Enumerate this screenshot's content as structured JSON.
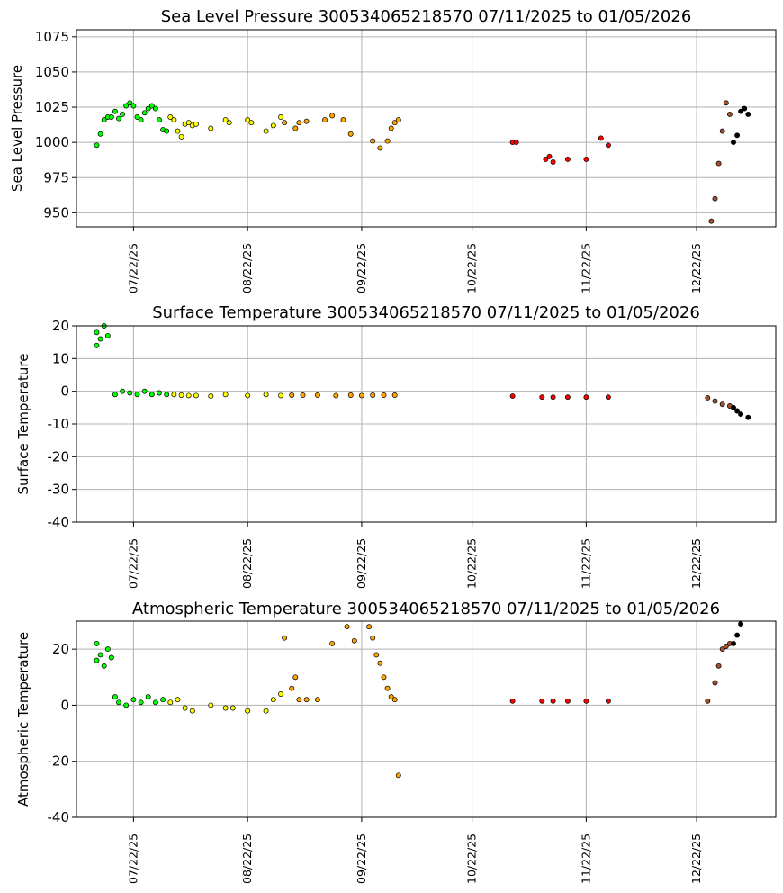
{
  "chart_data": [
    {
      "type": "scatter",
      "title": "Sea Level Pressure 300534065218570  07/11/2025 to 01/05/2026",
      "xlabel": "",
      "ylabel": "Sea Level Pressure",
      "xlim": [
        "2025-07-11",
        "2026-01-05"
      ],
      "ylim": [
        940,
        1080
      ],
      "yticks": [
        950,
        975,
        1000,
        1025,
        1050,
        1075
      ],
      "xticks": [
        "07/22/25",
        "08/22/25",
        "09/22/25",
        "10/22/25",
        "11/22/25",
        "12/22/25"
      ],
      "grid": true,
      "segments": [
        {
          "color": "#00ff00",
          "points": [
            [
              "2025-07-12",
              998
            ],
            [
              "2025-07-13",
              1006
            ],
            [
              "2025-07-14",
              1016
            ],
            [
              "2025-07-15",
              1018
            ],
            [
              "2025-07-16",
              1018
            ],
            [
              "2025-07-17",
              1022
            ],
            [
              "2025-07-18",
              1017
            ],
            [
              "2025-07-19",
              1020
            ],
            [
              "2025-07-20",
              1026
            ],
            [
              "2025-07-21",
              1028
            ],
            [
              "2025-07-22",
              1026
            ],
            [
              "2025-07-23",
              1018
            ],
            [
              "2025-07-24",
              1016
            ],
            [
              "2025-07-25",
              1021
            ],
            [
              "2025-07-26",
              1024
            ],
            [
              "2025-07-27",
              1026
            ],
            [
              "2025-07-28",
              1024
            ],
            [
              "2025-07-29",
              1016
            ],
            [
              "2025-07-30",
              1009
            ],
            [
              "2025-07-31",
              1008
            ]
          ]
        },
        {
          "color": "#ffff00",
          "points": [
            [
              "2025-08-01",
              1018
            ],
            [
              "2025-08-02",
              1016
            ],
            [
              "2025-08-03",
              1008
            ],
            [
              "2025-08-04",
              1004
            ],
            [
              "2025-08-05",
              1013
            ],
            [
              "2025-08-06",
              1014
            ],
            [
              "2025-08-07",
              1012
            ],
            [
              "2025-08-08",
              1013
            ],
            [
              "2025-08-12",
              1010
            ],
            [
              "2025-08-16",
              1016
            ],
            [
              "2025-08-17",
              1014
            ],
            [
              "2025-08-22",
              1016
            ],
            [
              "2025-08-23",
              1014
            ],
            [
              "2025-08-27",
              1008
            ],
            [
              "2025-08-29",
              1012
            ],
            [
              "2025-08-31",
              1018
            ]
          ]
        },
        {
          "color": "#ffa500",
          "points": [
            [
              "2025-09-01",
              1014
            ],
            [
              "2025-09-04",
              1010
            ],
            [
              "2025-09-05",
              1014
            ],
            [
              "2025-09-07",
              1015
            ],
            [
              "2025-09-12",
              1016
            ],
            [
              "2025-09-14",
              1019
            ],
            [
              "2025-09-17",
              1016
            ],
            [
              "2025-09-19",
              1006
            ],
            [
              "2025-09-25",
              1001
            ],
            [
              "2025-09-27",
              996
            ],
            [
              "2025-09-29",
              1001
            ],
            [
              "2025-09-30",
              1010
            ],
            [
              "2025-10-01",
              1014
            ],
            [
              "2025-10-02",
              1016
            ]
          ]
        },
        {
          "color": "#ff0000",
          "points": [
            [
              "2025-11-02",
              1000
            ],
            [
              "2025-11-03",
              1000
            ],
            [
              "2025-11-11",
              988
            ],
            [
              "2025-11-12",
              990
            ],
            [
              "2025-11-13",
              986
            ],
            [
              "2025-11-17",
              988
            ],
            [
              "2025-11-22",
              988
            ],
            [
              "2025-11-26",
              1003
            ],
            [
              "2025-11-28",
              998
            ]
          ]
        },
        {
          "color": "#a0522d",
          "points": [
            [
              "2025-12-26",
              944
            ],
            [
              "2025-12-27",
              960
            ],
            [
              "2025-12-28",
              985
            ],
            [
              "2025-12-29",
              1008
            ],
            [
              "2025-12-30",
              1028
            ],
            [
              "2025-12-31",
              1020
            ]
          ]
        },
        {
          "color": "#000000",
          "points": [
            [
              "2026-01-01",
              1000
            ],
            [
              "2026-01-02",
              1005
            ],
            [
              "2026-01-03",
              1022
            ],
            [
              "2026-01-04",
              1024
            ],
            [
              "2026-01-05",
              1020
            ]
          ]
        }
      ]
    },
    {
      "type": "scatter",
      "title": "Surface Temperature 300534065218570  07/11/2025 to 01/05/2026",
      "xlabel": "",
      "ylabel": "Surface Temperature",
      "xlim": [
        "2025-07-11",
        "2026-01-05"
      ],
      "ylim": [
        -40,
        20
      ],
      "yticks": [
        -40,
        -30,
        -20,
        -10,
        0,
        10,
        20
      ],
      "xticks": [
        "07/22/25",
        "08/22/25",
        "09/22/25",
        "10/22/25",
        "11/22/25",
        "12/22/25"
      ],
      "grid": true,
      "segments": [
        {
          "color": "#00ff00",
          "points": [
            [
              "2025-07-12",
              14
            ],
            [
              "2025-07-12",
              18
            ],
            [
              "2025-07-13",
              16
            ],
            [
              "2025-07-14",
              20
            ],
            [
              "2025-07-15",
              17
            ],
            [
              "2025-07-17",
              -1
            ],
            [
              "2025-07-19",
              0
            ],
            [
              "2025-07-21",
              -0.5
            ],
            [
              "2025-07-23",
              -1
            ],
            [
              "2025-07-25",
              0
            ],
            [
              "2025-07-27",
              -1
            ],
            [
              "2025-07-29",
              -0.5
            ],
            [
              "2025-07-31",
              -1
            ]
          ]
        },
        {
          "color": "#ffff00",
          "points": [
            [
              "2025-08-02",
              -1
            ],
            [
              "2025-08-04",
              -1.2
            ],
            [
              "2025-08-06",
              -1.3
            ],
            [
              "2025-08-08",
              -1.3
            ],
            [
              "2025-08-12",
              -1.5
            ],
            [
              "2025-08-16",
              -1
            ],
            [
              "2025-08-22",
              -1.3
            ],
            [
              "2025-08-27",
              -1
            ],
            [
              "2025-08-31",
              -1.3
            ]
          ]
        },
        {
          "color": "#ffa500",
          "points": [
            [
              "2025-09-03",
              -1.2
            ],
            [
              "2025-09-06",
              -1.2
            ],
            [
              "2025-09-10",
              -1.2
            ],
            [
              "2025-09-15",
              -1.3
            ],
            [
              "2025-09-19",
              -1.2
            ],
            [
              "2025-09-22",
              -1.3
            ],
            [
              "2025-09-25",
              -1.2
            ],
            [
              "2025-09-28",
              -1.2
            ],
            [
              "2025-10-01",
              -1.2
            ]
          ]
        },
        {
          "color": "#ff0000",
          "points": [
            [
              "2025-11-02",
              -1.5
            ],
            [
              "2025-11-10",
              -1.8
            ],
            [
              "2025-11-13",
              -1.8
            ],
            [
              "2025-11-17",
              -1.8
            ],
            [
              "2025-11-22",
              -1.8
            ],
            [
              "2025-11-28",
              -1.8
            ]
          ]
        },
        {
          "color": "#a0522d",
          "points": [
            [
              "2025-12-25",
              -2
            ],
            [
              "2025-12-27",
              -3
            ],
            [
              "2025-12-29",
              -4
            ],
            [
              "2025-12-31",
              -4.5
            ]
          ]
        },
        {
          "color": "#000000",
          "points": [
            [
              "2026-01-01",
              -5
            ],
            [
              "2026-01-02",
              -6
            ],
            [
              "2026-01-03",
              -7
            ],
            [
              "2026-01-05",
              -8
            ]
          ]
        }
      ]
    },
    {
      "type": "scatter",
      "title": "Atmospheric Temperature 300534065218570  07/11/2025 to 01/05/2026",
      "xlabel": "",
      "ylabel": "Atmospheric Temperature",
      "xlim": [
        "2025-07-11",
        "2026-01-05"
      ],
      "ylim": [
        -40,
        30
      ],
      "yticks": [
        -40,
        -20,
        0,
        20
      ],
      "xticks": [
        "07/22/25",
        "08/22/25",
        "09/22/25",
        "10/22/25",
        "11/22/25",
        "12/22/25"
      ],
      "grid": true,
      "segments": [
        {
          "color": "#00ff00",
          "points": [
            [
              "2025-07-12",
              16
            ],
            [
              "2025-07-12",
              22
            ],
            [
              "2025-07-13",
              18
            ],
            [
              "2025-07-14",
              14
            ],
            [
              "2025-07-15",
              20
            ],
            [
              "2025-07-16",
              17
            ],
            [
              "2025-07-17",
              3
            ],
            [
              "2025-07-18",
              1
            ],
            [
              "2025-07-20",
              0
            ],
            [
              "2025-07-22",
              2
            ],
            [
              "2025-07-24",
              1
            ],
            [
              "2025-07-26",
              3
            ],
            [
              "2025-07-28",
              1
            ],
            [
              "2025-07-30",
              2
            ]
          ]
        },
        {
          "color": "#ffff00",
          "points": [
            [
              "2025-08-01",
              1
            ],
            [
              "2025-08-03",
              2
            ],
            [
              "2025-08-05",
              -1
            ],
            [
              "2025-08-07",
              -2
            ],
            [
              "2025-08-12",
              0
            ],
            [
              "2025-08-16",
              -1
            ],
            [
              "2025-08-18",
              -1
            ],
            [
              "2025-08-22",
              -2
            ],
            [
              "2025-08-27",
              -2
            ],
            [
              "2025-08-29",
              2
            ],
            [
              "2025-08-31",
              4
            ]
          ]
        },
        {
          "color": "#ffa500",
          "points": [
            [
              "2025-09-01",
              24
            ],
            [
              "2025-09-03",
              6
            ],
            [
              "2025-09-04",
              10
            ],
            [
              "2025-09-05",
              2
            ],
            [
              "2025-09-07",
              2
            ],
            [
              "2025-09-10",
              2
            ],
            [
              "2025-09-14",
              22
            ],
            [
              "2025-09-18",
              28
            ],
            [
              "2025-09-20",
              23
            ],
            [
              "2025-09-24",
              28
            ],
            [
              "2025-09-25",
              24
            ],
            [
              "2025-09-26",
              18
            ],
            [
              "2025-09-27",
              15
            ],
            [
              "2025-09-28",
              10
            ],
            [
              "2025-09-29",
              6
            ],
            [
              "2025-09-30",
              3
            ],
            [
              "2025-10-01",
              2
            ],
            [
              "2025-10-02",
              -25
            ]
          ]
        },
        {
          "color": "#ff0000",
          "points": [
            [
              "2025-11-02",
              1.5
            ],
            [
              "2025-11-10",
              1.5
            ],
            [
              "2025-11-13",
              1.5
            ],
            [
              "2025-11-17",
              1.5
            ],
            [
              "2025-11-22",
              1.5
            ],
            [
              "2025-11-28",
              1.5
            ]
          ]
        },
        {
          "color": "#a0522d",
          "points": [
            [
              "2025-12-25",
              1.5
            ],
            [
              "2025-12-27",
              8
            ],
            [
              "2025-12-28",
              14
            ],
            [
              "2025-12-29",
              20
            ],
            [
              "2025-12-30",
              21
            ],
            [
              "2025-12-31",
              22
            ]
          ]
        },
        {
          "color": "#000000",
          "points": [
            [
              "2026-01-01",
              22
            ],
            [
              "2026-01-02",
              25
            ],
            [
              "2026-01-03",
              29
            ]
          ]
        }
      ]
    }
  ]
}
